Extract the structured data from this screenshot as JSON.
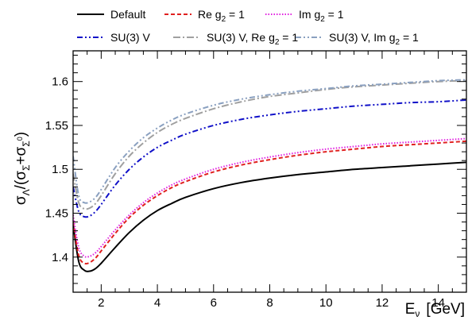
{
  "chart_data": {
    "type": "line",
    "title": "",
    "xlim": [
      1.0,
      15.0
    ],
    "ylim": [
      1.36,
      1.635
    ],
    "x_ticks": [
      "2",
      "4",
      "6",
      "8",
      "10",
      "12",
      "14"
    ],
    "y_ticks": [
      "1.4",
      "1.45",
      "1.5",
      "1.55",
      "1.6"
    ],
    "xlabel": {
      "main": "E",
      "sub": "ν",
      "unit": "[GeV]"
    },
    "ylabel": {
      "sigma": "σ",
      "lambda": "Λ",
      "slash_open": "/(",
      "sigma_plus": "Σ",
      "plus": "+",
      "sigma_zero": "Σ",
      "zero": "0",
      "close": ")"
    },
    "legend_position": "top",
    "series": [
      {
        "name": "Default",
        "color": "#000000",
        "dash": "solid",
        "x": [
          1.0,
          1.2,
          1.4,
          1.6,
          1.8,
          2.0,
          2.5,
          3.0,
          3.5,
          4.0,
          4.5,
          5.0,
          6.0,
          7.0,
          8.0,
          9.0,
          10.0,
          11.0,
          12.0,
          13.0,
          14.0,
          15.0
        ],
        "y": [
          1.437,
          1.395,
          1.385,
          1.384,
          1.387,
          1.393,
          1.411,
          1.428,
          1.442,
          1.453,
          1.461,
          1.468,
          1.478,
          1.485,
          1.49,
          1.494,
          1.497,
          1.5,
          1.502,
          1.504,
          1.506,
          1.508
        ]
      },
      {
        "name": "Re g2 = 1",
        "name_main": "Re g",
        "name_sub": "2",
        "name_tail": " = 1",
        "color": "#e0201f",
        "dash": "dashed",
        "x": [
          1.0,
          1.2,
          1.4,
          1.6,
          1.8,
          2.0,
          2.5,
          3.0,
          3.5,
          4.0,
          4.5,
          5.0,
          6.0,
          7.0,
          8.0,
          9.0,
          10.0,
          11.0,
          12.0,
          13.0,
          14.0,
          15.0
        ],
        "y": [
          1.44,
          1.402,
          1.393,
          1.394,
          1.399,
          1.407,
          1.427,
          1.445,
          1.459,
          1.47,
          1.479,
          1.486,
          1.497,
          1.505,
          1.511,
          1.516,
          1.52,
          1.523,
          1.526,
          1.528,
          1.53,
          1.532
        ]
      },
      {
        "name": "Im g2 = 1",
        "name_main": "Im g",
        "name_sub": "2",
        "name_tail": " = 1",
        "color": "#e020e0",
        "dash": "dotted",
        "x": [
          1.0,
          1.2,
          1.4,
          1.6,
          1.8,
          2.0,
          2.5,
          3.0,
          3.5,
          4.0,
          4.5,
          5.0,
          6.0,
          7.0,
          8.0,
          9.0,
          10.0,
          11.0,
          12.0,
          13.0,
          14.0,
          15.0
        ],
        "y": [
          1.448,
          1.411,
          1.401,
          1.401,
          1.405,
          1.412,
          1.431,
          1.448,
          1.462,
          1.473,
          1.482,
          1.489,
          1.5,
          1.508,
          1.514,
          1.519,
          1.523,
          1.526,
          1.529,
          1.531,
          1.533,
          1.535
        ]
      },
      {
        "name": "SU(3) V",
        "color": "#1010c8",
        "dash": "dashdotdot",
        "x": [
          1.0,
          1.2,
          1.4,
          1.6,
          1.8,
          2.0,
          2.5,
          3.0,
          3.5,
          4.0,
          4.5,
          5.0,
          6.0,
          7.0,
          8.0,
          9.0,
          10.0,
          11.0,
          12.0,
          13.0,
          14.0,
          15.0
        ],
        "y": [
          1.48,
          1.452,
          1.446,
          1.447,
          1.452,
          1.46,
          1.482,
          1.5,
          1.514,
          1.525,
          1.533,
          1.54,
          1.55,
          1.557,
          1.562,
          1.566,
          1.569,
          1.572,
          1.574,
          1.576,
          1.577,
          1.579
        ]
      },
      {
        "name": "SU(3) V, Re g2 = 1",
        "name_main": "SU(3) V, Re g",
        "name_sub": "2",
        "name_tail": " = 1",
        "color": "#a0a0a0",
        "dash": "dashdot",
        "x": [
          1.0,
          1.2,
          1.4,
          1.6,
          1.8,
          2.0,
          2.5,
          3.0,
          3.5,
          4.0,
          4.5,
          5.0,
          6.0,
          7.0,
          8.0,
          9.0,
          10.0,
          11.0,
          12.0,
          13.0,
          14.0,
          15.0
        ],
        "y": [
          1.495,
          1.462,
          1.455,
          1.456,
          1.461,
          1.47,
          1.495,
          1.515,
          1.53,
          1.542,
          1.551,
          1.558,
          1.569,
          1.577,
          1.583,
          1.587,
          1.591,
          1.594,
          1.596,
          1.598,
          1.6,
          1.601
        ]
      },
      {
        "name": "SU(3) V, Im g2 = 1",
        "name_main": "SU(3) V, Im g",
        "name_sub": "2",
        "name_tail": " = 1",
        "color": "#8aa0c0",
        "dash": "dashdotdot",
        "x": [
          1.0,
          1.2,
          1.4,
          1.6,
          1.8,
          2.0,
          2.5,
          3.0,
          3.5,
          4.0,
          4.5,
          5.0,
          6.0,
          7.0,
          8.0,
          9.0,
          10.0,
          11.0,
          12.0,
          13.0,
          14.0,
          15.0
        ],
        "y": [
          1.515,
          1.47,
          1.462,
          1.463,
          1.468,
          1.477,
          1.502,
          1.521,
          1.536,
          1.547,
          1.556,
          1.563,
          1.573,
          1.58,
          1.585,
          1.589,
          1.592,
          1.595,
          1.597,
          1.599,
          1.601,
          1.602
        ]
      }
    ]
  }
}
